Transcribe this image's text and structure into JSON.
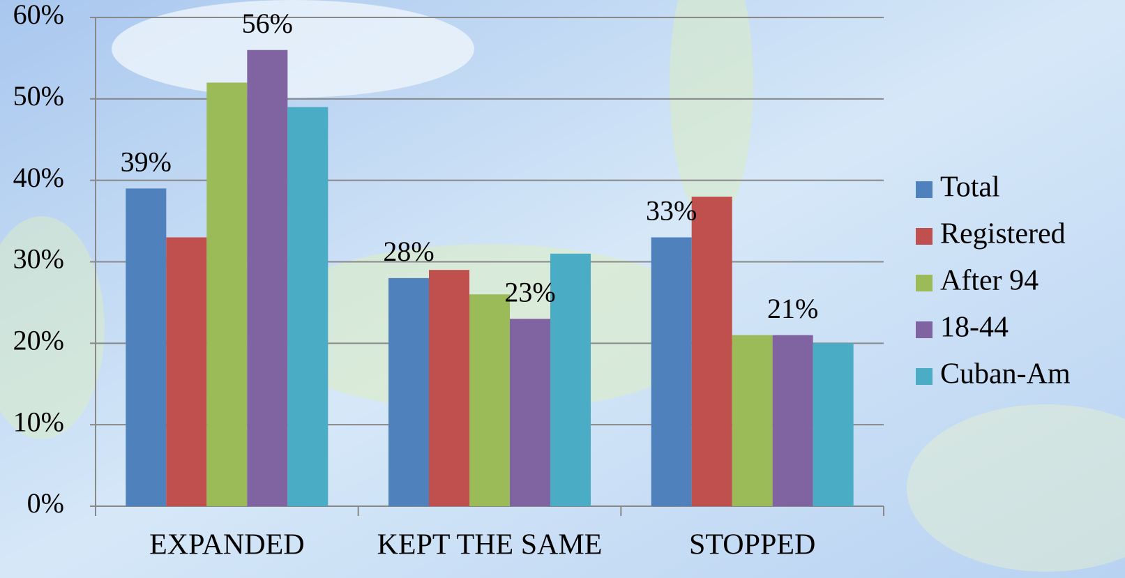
{
  "chart_data": {
    "type": "bar",
    "categories": [
      "EXPANDED",
      "KEPT THE SAME",
      "STOPPED"
    ],
    "series": [
      {
        "name": "Total",
        "color": "#4f81bd",
        "values": [
          39,
          28,
          33
        ],
        "value_labels": [
          "39%",
          "28%",
          "33%"
        ]
      },
      {
        "name": "Registered",
        "color": "#c0504d",
        "values": [
          33,
          29,
          38
        ]
      },
      {
        "name": "After 94",
        "color": "#9bbb59",
        "values": [
          52,
          26,
          21
        ]
      },
      {
        "name": "18-44",
        "color": "#8064a2",
        "values": [
          56,
          23,
          21
        ],
        "value_labels": [
          "56%",
          "23%",
          "21%"
        ]
      },
      {
        "name": "Cuban-Am",
        "color": "#4bacc6",
        "values": [
          49,
          31,
          20
        ]
      }
    ],
    "ylim": [
      0,
      60
    ],
    "yticks": [
      {
        "value": 0,
        "label": "0%"
      },
      {
        "value": 10,
        "label": "10%"
      },
      {
        "value": 20,
        "label": "20%"
      },
      {
        "value": 30,
        "label": "30%"
      },
      {
        "value": 40,
        "label": "40%"
      },
      {
        "value": 50,
        "label": "50%"
      },
      {
        "value": 60,
        "label": "60%"
      }
    ],
    "grid": true,
    "legend": "right"
  }
}
